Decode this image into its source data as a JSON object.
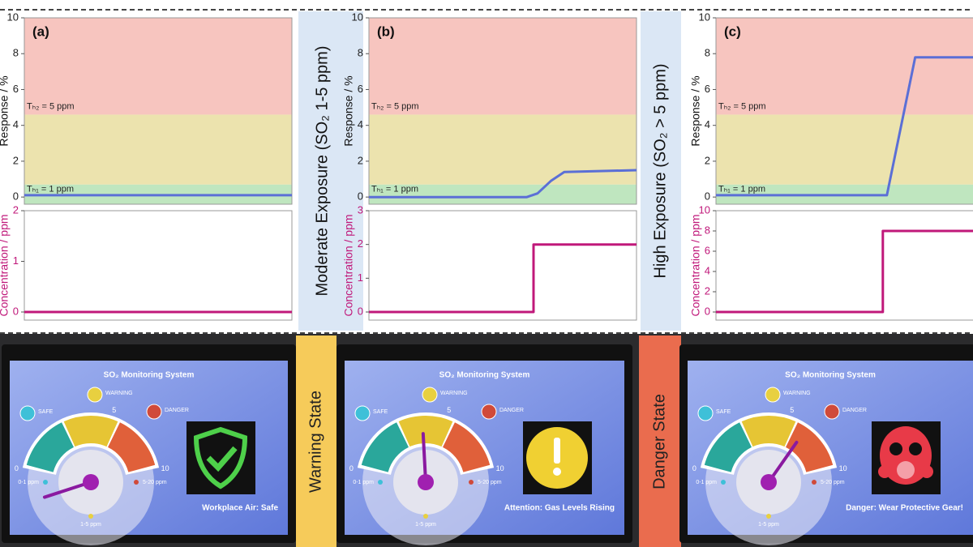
{
  "chart_data": [
    {
      "type": "line",
      "panel_label": "(a)",
      "ylabel": "Response / %",
      "xlim": [
        0,
        10
      ],
      "ylim": [
        -0.4,
        10
      ],
      "yticks": [
        0,
        2,
        4,
        6,
        8,
        10
      ],
      "band_colors": [
        "#bfe6bf",
        "#ece3ae",
        "#f7c5bf"
      ],
      "thresholds": [
        {
          "value": 0.7,
          "label": "Tₕ₁ = 1 ppm"
        },
        {
          "value": 4.6,
          "label": "Tₕ₂ = 5 ppm"
        }
      ],
      "x": [
        0,
        10
      ],
      "series": [
        {
          "color": "#5b6fd6",
          "values": [
            0.1,
            0.1
          ]
        }
      ]
    },
    {
      "type": "line",
      "ylabel": "Concentration / ppm",
      "xlim": [
        0,
        10
      ],
      "ylim": [
        -0.16,
        2
      ],
      "yticks": [
        0,
        1,
        2
      ],
      "tick_color": "#c0187a",
      "x": [
        0,
        10
      ],
      "series": [
        {
          "color": "#c0187a",
          "values": [
            0,
            0
          ]
        }
      ]
    },
    {
      "type": "line",
      "panel_label": "(b)",
      "ylabel": "Response / %",
      "xlim": [
        0,
        10
      ],
      "ylim": [
        -0.4,
        10
      ],
      "yticks": [
        0,
        2,
        4,
        6,
        8,
        10
      ],
      "band_colors": [
        "#bfe6bf",
        "#ece3ae",
        "#f7c5bf"
      ],
      "thresholds": [
        {
          "value": 0.7,
          "label": "Tₕ₁ = 1 ppm"
        },
        {
          "value": 4.6,
          "label": "Tₕ₂ = 5 ppm"
        }
      ],
      "x": [
        0,
        5.9,
        6.3,
        6.8,
        7.3,
        10
      ],
      "series": [
        {
          "color": "#5b6fd6",
          "values": [
            0,
            0,
            0.2,
            0.9,
            1.4,
            1.5
          ]
        }
      ]
    },
    {
      "type": "line",
      "ylabel": "Concentration / ppm",
      "xlim": [
        0,
        10
      ],
      "ylim": [
        -0.24,
        3
      ],
      "yticks": [
        0,
        1,
        2,
        3
      ],
      "tick_color": "#c0187a",
      "x": [
        0,
        6.15,
        6.15,
        10
      ],
      "series": [
        {
          "color": "#c0187a",
          "values": [
            0,
            0,
            2,
            2
          ]
        }
      ]
    },
    {
      "type": "line",
      "panel_label": "(c)",
      "ylabel": "Response / %",
      "xlim": [
        0,
        10
      ],
      "ylim": [
        -0.4,
        10
      ],
      "yticks": [
        0,
        2,
        4,
        6,
        8,
        10
      ],
      "band_colors": [
        "#bfe6bf",
        "#ece3ae",
        "#f7c5bf"
      ],
      "thresholds": [
        {
          "value": 0.7,
          "label": "Tₕ₁ = 1 ppm"
        },
        {
          "value": 4.6,
          "label": "Tₕ₂ = 5 ppm"
        }
      ],
      "x": [
        0,
        6.35,
        7.4,
        10
      ],
      "series": [
        {
          "color": "#5b6fd6",
          "values": [
            0.1,
            0.1,
            7.8,
            7.8
          ]
        }
      ]
    },
    {
      "type": "line",
      "ylabel": "Concentration / ppm",
      "xlim": [
        0,
        10
      ],
      "ylim": [
        -0.8,
        10
      ],
      "yticks": [
        0,
        2,
        4,
        6,
        8,
        10
      ],
      "tick_color": "#c0187a",
      "x": [
        0,
        6.2,
        6.2,
        10
      ],
      "series": [
        {
          "color": "#c0187a",
          "values": [
            0,
            0,
            8,
            8
          ]
        }
      ]
    }
  ],
  "side_labels": {
    "moderate": "Moderate Exposure (SO₂ 1-5 ppm)",
    "high": "High Exposure (SO₂ > 5 ppm)",
    "warning": "Warning State",
    "danger": "Danger State"
  },
  "screens": [
    {
      "title": "SO₂ Monitoring System",
      "levels": [
        "SAFE",
        "WARNING",
        "DANGER"
      ],
      "ranges": [
        "0-1 ppm",
        "1-5 ppm",
        "5-20 ppm"
      ],
      "scale": [
        "0",
        "5",
        "10"
      ],
      "status": "Workplace Air: Safe"
    },
    {
      "title": "SO₂ Monitoring System",
      "levels": [
        "SAFE",
        "WARNING",
        "DANGER"
      ],
      "ranges": [
        "0-1 ppm",
        "1-5 ppm",
        "5-20 ppm"
      ],
      "scale": [
        "0",
        "5",
        "10"
      ],
      "status": "Attention: Gas Levels Rising"
    },
    {
      "title": "SO₂ Monitoring System",
      "levels": [
        "SAFE",
        "WARNING",
        "DANGER"
      ],
      "ranges": [
        "0-1 ppm",
        "1-5 ppm",
        "5-20 ppm"
      ],
      "scale": [
        "0",
        "5",
        "10"
      ],
      "status": "Danger: Wear Protective Gear!"
    }
  ]
}
